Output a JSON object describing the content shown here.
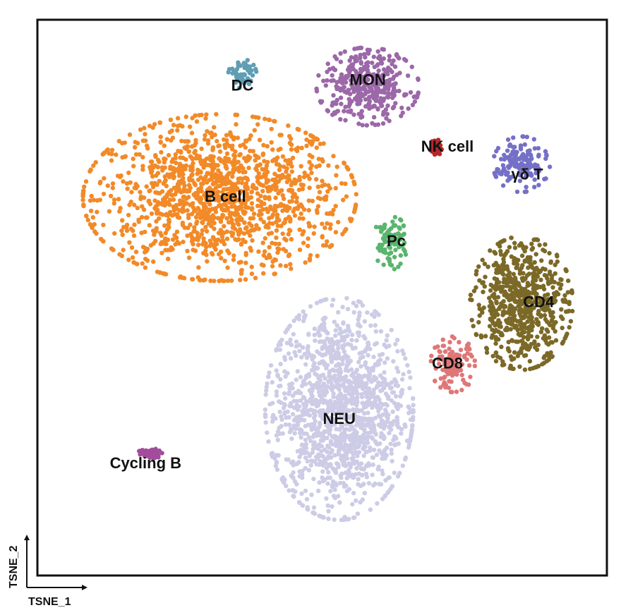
{
  "chart_data": {
    "type": "scatter",
    "title": "",
    "xlabel": "TSNE_1",
    "ylabel": "TSNE_2",
    "xlim": [
      0,
      100
    ],
    "ylim": [
      0,
      100
    ],
    "grid": false,
    "legend": "none (labels placed on clusters)",
    "clusters": [
      {
        "name": "B cell",
        "color": "#f28a28",
        "center": [
          32,
          68
        ],
        "extent": [
          24,
          15
        ],
        "label_pos": [
          33,
          68
        ]
      },
      {
        "name": "NEU",
        "color": "#cccce6",
        "center": [
          53,
          30
        ],
        "extent": [
          13,
          20
        ],
        "label_pos": [
          53,
          28
        ]
      },
      {
        "name": "MON",
        "color": "#9b68a8",
        "center": [
          58,
          88
        ],
        "extent": [
          9,
          7
        ],
        "label_pos": [
          58,
          89
        ]
      },
      {
        "name": "DC",
        "color": "#5f9eb4",
        "center": [
          36,
          90
        ],
        "extent": [
          2.5,
          3
        ],
        "label_pos": [
          36,
          88
        ]
      },
      {
        "name": "NK cell",
        "color": "#b5282a",
        "center": [
          70,
          77
        ],
        "extent": [
          1,
          1.5
        ],
        "label_pos": [
          72,
          77
        ]
      },
      {
        "name": "γδ T",
        "color": "#7570c7",
        "center": [
          85,
          74
        ],
        "extent": [
          5,
          5
        ],
        "label_pos": [
          86,
          72
        ]
      },
      {
        "name": "Pc",
        "color": "#5ab56e",
        "center": [
          62,
          60
        ],
        "extent": [
          3,
          5
        ],
        "label_pos": [
          63,
          60
        ]
      },
      {
        "name": "CD4",
        "color": "#7b6927",
        "center": [
          85,
          49
        ],
        "extent": [
          9,
          12
        ],
        "label_pos": [
          88,
          49
        ]
      },
      {
        "name": "CD8",
        "color": "#e07677",
        "center": [
          73,
          38
        ],
        "extent": [
          4,
          5
        ],
        "label_pos": [
          72,
          38
        ]
      },
      {
        "name": "Cycling B",
        "color": "#a24c9c",
        "center": [
          20,
          22
        ],
        "extent": [
          2.5,
          1
        ],
        "label_pos": [
          19,
          20
        ]
      }
    ]
  }
}
